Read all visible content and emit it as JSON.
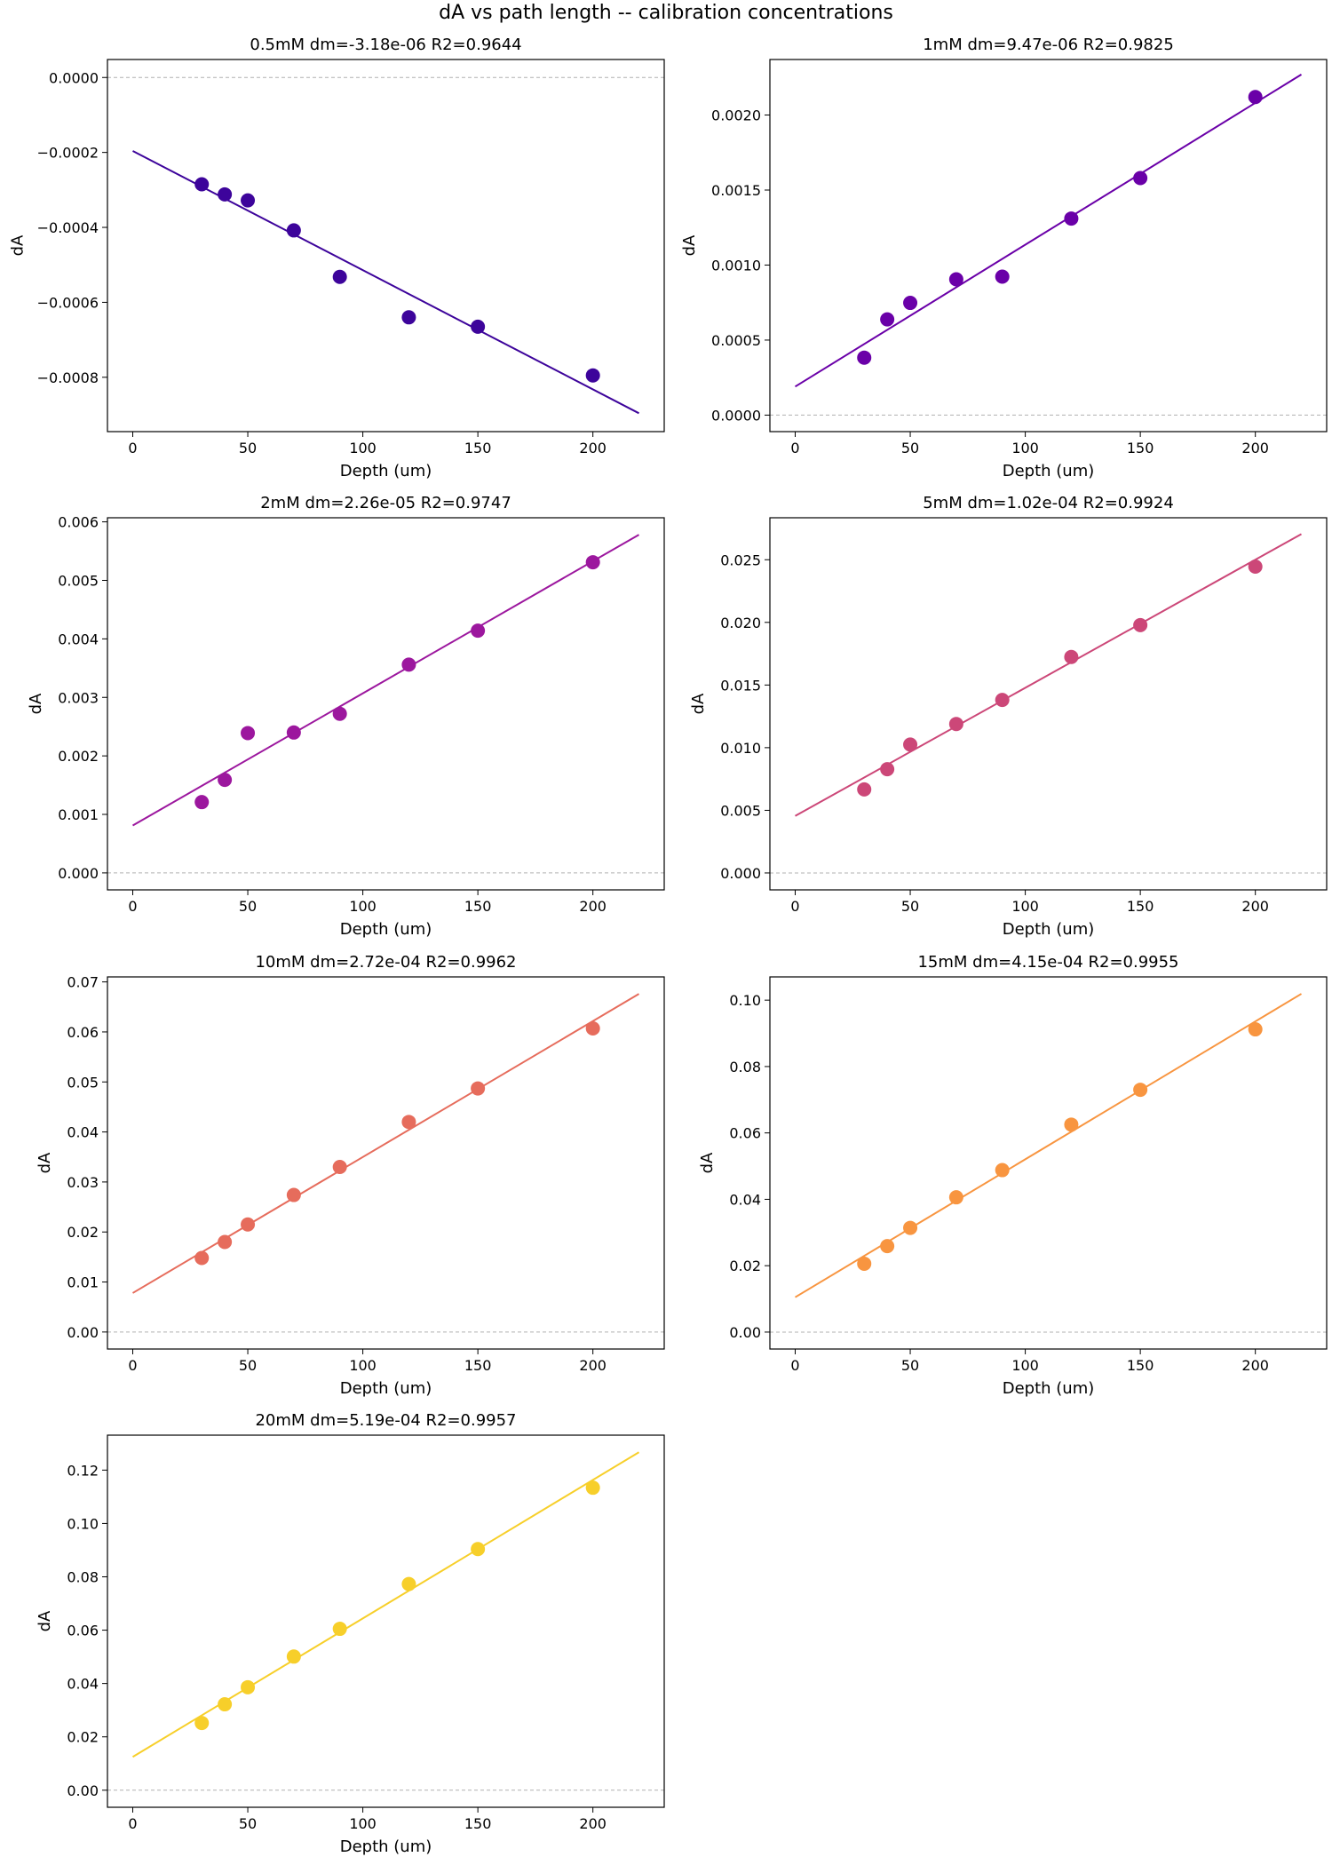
{
  "figure": {
    "suptitle": "dA vs path length -- calibration concentrations"
  },
  "chart_data": [
    {
      "type": "scatter",
      "title": "0.5mM  dm=-3.18e-06  R2=0.9644",
      "xlabel": "Depth (um)",
      "ylabel": "dA",
      "color": "#3d049b",
      "x": [
        30,
        40,
        50,
        70,
        90,
        120,
        150,
        200
      ],
      "y": [
        -0.000285,
        -0.000312,
        -0.000328,
        -0.000408,
        -0.000532,
        -0.00064,
        -0.000665,
        -0.000795
      ],
      "fit": {
        "x": [
          0,
          220
        ],
        "y": [
          -0.000196,
          -0.000896
        ]
      },
      "xlim": [
        -11,
        231
      ],
      "ylim": [
        -0.000945,
        4.8e-05
      ],
      "xticks": [
        0,
        50,
        100,
        150,
        200
      ],
      "xticklabels": [
        "0",
        "50",
        "100",
        "150",
        "200"
      ],
      "yticks": [
        0,
        -0.0002,
        -0.0004,
        -0.0006,
        -0.0008
      ],
      "yticklabels": [
        "0.0000",
        "−0.0002",
        "−0.0004",
        "−0.0006",
        "−0.0008"
      ],
      "zero_line": true,
      "grid": false
    },
    {
      "type": "scatter",
      "title": "1mM  dm=9.47e-06  R2=0.9825",
      "xlabel": "Depth (um)",
      "ylabel": "dA",
      "color": "#6a00a8",
      "x": [
        30,
        40,
        50,
        70,
        90,
        120,
        150,
        200
      ],
      "y": [
        0.000383,
        0.000638,
        0.000748,
        0.000905,
        0.000923,
        0.00131,
        0.00158,
        0.00212
      ],
      "fit": {
        "x": [
          0,
          220
        ],
        "y": [
          0.00019,
          0.00227
        ]
      },
      "xlim": [
        -11,
        231
      ],
      "ylim": [
        -0.00011,
        0.00237
      ],
      "xticks": [
        0,
        50,
        100,
        150,
        200
      ],
      "xticklabels": [
        "0",
        "50",
        "100",
        "150",
        "200"
      ],
      "yticks": [
        0,
        0.0005,
        0.001,
        0.0015,
        0.002
      ],
      "yticklabels": [
        "0.0000",
        "0.0005",
        "0.0010",
        "0.0015",
        "0.0020"
      ],
      "zero_line": true,
      "grid": false
    },
    {
      "type": "scatter",
      "title": "2mM  dm=2.26e-05  R2=0.9747",
      "xlabel": "Depth (um)",
      "ylabel": "dA",
      "color": "#9c179e",
      "x": [
        30,
        40,
        50,
        70,
        90,
        120,
        150,
        200
      ],
      "y": [
        0.00121,
        0.00159,
        0.00239,
        0.0024,
        0.00272,
        0.00356,
        0.00414,
        0.00531
      ],
      "fit": {
        "x": [
          0,
          220
        ],
        "y": [
          0.00081,
          0.00578
        ]
      },
      "xlim": [
        -11,
        231
      ],
      "ylim": [
        -0.00029,
        0.00607
      ],
      "xticks": [
        0,
        50,
        100,
        150,
        200
      ],
      "xticklabels": [
        "0",
        "50",
        "100",
        "150",
        "200"
      ],
      "yticks": [
        0,
        0.001,
        0.002,
        0.003,
        0.004,
        0.005,
        0.006
      ],
      "yticklabels": [
        "0.000",
        "0.001",
        "0.002",
        "0.003",
        "0.004",
        "0.005",
        "0.006"
      ],
      "zero_line": true,
      "grid": false
    },
    {
      "type": "scatter",
      "title": "5mM  dm=1.02e-04  R2=0.9924",
      "xlabel": "Depth (um)",
      "ylabel": "dA",
      "color": "#cc4778",
      "x": [
        30,
        40,
        50,
        70,
        90,
        120,
        150,
        200
      ],
      "y": [
        0.00667,
        0.00828,
        0.01025,
        0.01189,
        0.01381,
        0.01724,
        0.01978,
        0.02445
      ],
      "fit": {
        "x": [
          0,
          220
        ],
        "y": [
          0.00455,
          0.02705
        ]
      },
      "xlim": [
        -11,
        231
      ],
      "ylim": [
        -0.00135,
        0.02835
      ],
      "xticks": [
        0,
        50,
        100,
        150,
        200
      ],
      "xticklabels": [
        "0",
        "50",
        "100",
        "150",
        "200"
      ],
      "yticks": [
        0,
        0.005,
        0.01,
        0.015,
        0.02,
        0.025
      ],
      "yticklabels": [
        "0.000",
        "0.005",
        "0.010",
        "0.015",
        "0.020",
        "0.025"
      ],
      "zero_line": true,
      "grid": false
    },
    {
      "type": "scatter",
      "title": "10mM  dm=2.72e-04  R2=0.9962",
      "xlabel": "Depth (um)",
      "ylabel": "dA",
      "color": "#e66c5c",
      "x": [
        30,
        40,
        50,
        70,
        90,
        120,
        150,
        200
      ],
      "y": [
        0.0148,
        0.018,
        0.0215,
        0.0274,
        0.033,
        0.042,
        0.0487,
        0.0607
      ],
      "fit": {
        "x": [
          0,
          220
        ],
        "y": [
          0.0078,
          0.0676
        ]
      },
      "xlim": [
        -11,
        231
      ],
      "ylim": [
        -0.0034,
        0.071
      ],
      "xticks": [
        0,
        50,
        100,
        150,
        200
      ],
      "xticklabels": [
        "0",
        "50",
        "100",
        "150",
        "200"
      ],
      "yticks": [
        0,
        0.01,
        0.02,
        0.03,
        0.04,
        0.05,
        0.06,
        0.07
      ],
      "yticklabels": [
        "0.00",
        "0.01",
        "0.02",
        "0.03",
        "0.04",
        "0.05",
        "0.06",
        "0.07"
      ],
      "zero_line": true,
      "grid": false
    },
    {
      "type": "scatter",
      "title": "15mM  dm=4.15e-04  R2=0.9955",
      "xlabel": "Depth (um)",
      "ylabel": "dA",
      "color": "#f89540",
      "x": [
        30,
        40,
        50,
        70,
        90,
        120,
        150,
        200
      ],
      "y": [
        0.0206,
        0.0259,
        0.0314,
        0.0406,
        0.0488,
        0.0625,
        0.073,
        0.0912
      ],
      "fit": {
        "x": [
          0,
          220
        ],
        "y": [
          0.0105,
          0.1019
        ]
      },
      "xlim": [
        -11,
        231
      ],
      "ylim": [
        -0.0051,
        0.107
      ],
      "xticks": [
        0,
        50,
        100,
        150,
        200
      ],
      "xticklabels": [
        "0",
        "50",
        "100",
        "150",
        "200"
      ],
      "yticks": [
        0,
        0.02,
        0.04,
        0.06,
        0.08,
        0.1
      ],
      "yticklabels": [
        "0.00",
        "0.02",
        "0.04",
        "0.06",
        "0.08",
        "0.10"
      ],
      "zero_line": true,
      "grid": false
    },
    {
      "type": "scatter",
      "title": "20mM  dm=5.19e-04  R2=0.9957",
      "xlabel": "Depth (um)",
      "ylabel": "dA",
      "color": "#f7cf2a",
      "x": [
        30,
        40,
        50,
        70,
        90,
        120,
        150,
        200
      ],
      "y": [
        0.0252,
        0.0322,
        0.0386,
        0.0501,
        0.0605,
        0.0773,
        0.0904,
        0.1134
      ],
      "fit": {
        "x": [
          0,
          220
        ],
        "y": [
          0.0125,
          0.1267
        ]
      },
      "xlim": [
        -11,
        231
      ],
      "ylim": [
        -0.0064,
        0.1331
      ],
      "xticks": [
        0,
        50,
        100,
        150,
        200
      ],
      "xticklabels": [
        "0",
        "50",
        "100",
        "150",
        "200"
      ],
      "yticks": [
        0,
        0.02,
        0.04,
        0.06,
        0.08,
        0.1,
        0.12
      ],
      "yticklabels": [
        "0.00",
        "0.02",
        "0.04",
        "0.06",
        "0.08",
        "0.10",
        "0.12"
      ],
      "zero_line": true,
      "grid": false
    }
  ]
}
